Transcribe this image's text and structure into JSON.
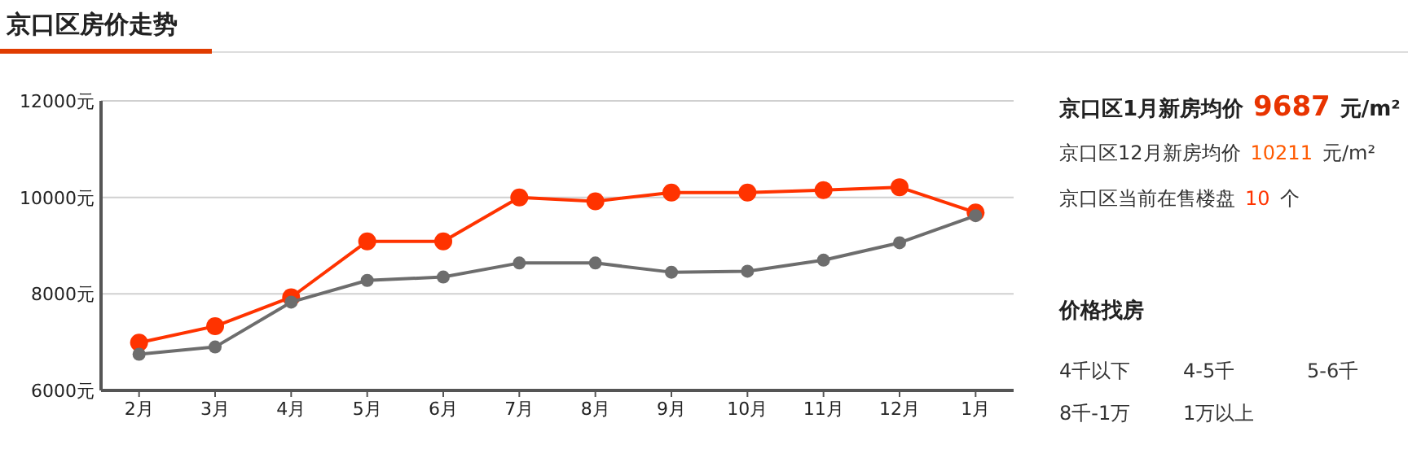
{
  "chart_data": [
    {
      "type": "line",
      "title": "京口区房价走势",
      "categories": [
        "2月",
        "3月",
        "4月",
        "5月",
        "6月",
        "7月",
        "8月",
        "9月",
        "10月",
        "11月",
        "12月",
        "1月"
      ],
      "series": [
        {
          "color": "#ff3300",
          "values": [
            6990,
            7330,
            7930,
            9090,
            9090,
            10000,
            9920,
            10100,
            10100,
            10150,
            10211,
            9687
          ]
        },
        {
          "color": "#6d6d6d",
          "values": [
            6750,
            6900,
            7830,
            8280,
            8350,
            8640,
            8640,
            8450,
            8470,
            8700,
            9060,
            9620
          ]
        }
      ],
      "ylim": [
        6000,
        12000
      ],
      "yticks": [
        {
          "value": 6000,
          "label": "6000元"
        },
        {
          "value": 8000,
          "label": "8000元"
        },
        {
          "value": 10000,
          "label": "10000元"
        },
        {
          "value": 12000,
          "label": "12000元"
        }
      ],
      "grid": "y",
      "marker": "circle",
      "line_style": "solid"
    },
    {
      "type": "other",
      "title": "价格找房",
      "annotations": [
        "京口区1月新房均价",
        "9687",
        "元/m²",
        "京口区12月新房均价",
        "10211",
        "元/m²",
        "京口区当前在售楼盘",
        "10",
        "个",
        "4千以下",
        "4-5千",
        "5-6千",
        "8千-1万",
        "1万以上"
      ]
    }
  ]
}
